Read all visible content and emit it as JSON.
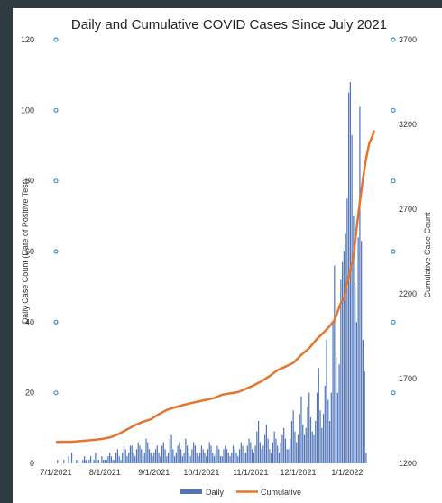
{
  "chart_data": {
    "type": "bar+line",
    "title": "Daily and Cumulative COVID Cases Since July 2021",
    "ylabel_left": "Daily Case Count (Date of Positive Test)",
    "ylabel_right": "Cumulative Case Count",
    "y_left_range": [
      0,
      120
    ],
    "y_right_range": [
      1200,
      3700
    ],
    "y_left_ticks": [
      "0",
      "20",
      "40",
      "60",
      "80",
      "100",
      "120"
    ],
    "y_right_ticks": [
      "1200",
      "1700",
      "2200",
      "2700",
      "3200",
      "3700"
    ],
    "x_ticks": [
      "7/1/2021",
      "8/1/2021",
      "9/1/2021",
      "10/1/2021",
      "11/1/2021",
      "12/1/2021",
      "1/1/2022"
    ],
    "x_range_days": [
      0,
      212
    ],
    "x_tick_days": [
      0,
      31,
      62,
      92,
      123,
      153,
      184
    ],
    "legend": [
      "Daily",
      "Cumulative"
    ],
    "colors": {
      "daily": "#4f74b8",
      "cumulative": "#e3762f",
      "marker": "#3a8fd6"
    },
    "daily": [
      0,
      1,
      0,
      0,
      0,
      1,
      0,
      0,
      2,
      0,
      3,
      0,
      0,
      1,
      1,
      0,
      0,
      1,
      2,
      1,
      0,
      1,
      2,
      0,
      1,
      3,
      1,
      1,
      0,
      2,
      1,
      1,
      1,
      2,
      3,
      2,
      1,
      1,
      3,
      4,
      2,
      1,
      3,
      5,
      4,
      2,
      3,
      5,
      5,
      3,
      2,
      4,
      6,
      5,
      4,
      2,
      3,
      7,
      6,
      4,
      3,
      2,
      3,
      4,
      5,
      3,
      2,
      5,
      6,
      4,
      2,
      3,
      7,
      8,
      4,
      2,
      3,
      5,
      6,
      4,
      2,
      3,
      7,
      5,
      3,
      2,
      4,
      6,
      5,
      3,
      2,
      3,
      5,
      4,
      3,
      2,
      4,
      6,
      5,
      3,
      2,
      3,
      5,
      4,
      2,
      2,
      4,
      5,
      4,
      3,
      2,
      3,
      5,
      4,
      3,
      2,
      4,
      6,
      5,
      3,
      3,
      5,
      7,
      6,
      4,
      3,
      5,
      9,
      12,
      6,
      4,
      5,
      8,
      11,
      7,
      4,
      3,
      6,
      9,
      7,
      5,
      3,
      6,
      8,
      10,
      7,
      4,
      4,
      7,
      12,
      15,
      9,
      6,
      8,
      14,
      19,
      11,
      8,
      10,
      16,
      20,
      13,
      9,
      8,
      12,
      20,
      27,
      15,
      10,
      14,
      22,
      35,
      18,
      12,
      20,
      40,
      56,
      30,
      20,
      28,
      52,
      57,
      60,
      65,
      75,
      105,
      108,
      93,
      70,
      50,
      40,
      64,
      101,
      63,
      35,
      26,
      3
    ],
    "cumulative": [
      [
        0,
        1326
      ],
      [
        5,
        1327
      ],
      [
        10,
        1327
      ],
      [
        15,
        1331
      ],
      [
        20,
        1335
      ],
      [
        25,
        1340
      ],
      [
        30,
        1345
      ],
      [
        35,
        1355
      ],
      [
        40,
        1375
      ],
      [
        45,
        1400
      ],
      [
        50,
        1425
      ],
      [
        55,
        1445
      ],
      [
        60,
        1460
      ],
      [
        65,
        1490
      ],
      [
        70,
        1515
      ],
      [
        75,
        1530
      ],
      [
        80,
        1543
      ],
      [
        85,
        1555
      ],
      [
        90,
        1565
      ],
      [
        95,
        1575
      ],
      [
        100,
        1585
      ],
      [
        105,
        1605
      ],
      [
        110,
        1613
      ],
      [
        115,
        1620
      ],
      [
        120,
        1640
      ],
      [
        125,
        1660
      ],
      [
        130,
        1685
      ],
      [
        135,
        1715
      ],
      [
        140,
        1750
      ],
      [
        145,
        1770
      ],
      [
        150,
        1793
      ],
      [
        155,
        1840
      ],
      [
        160,
        1880
      ],
      [
        165,
        1935
      ],
      [
        170,
        1980
      ],
      [
        173,
        2010
      ],
      [
        176,
        2045
      ],
      [
        178,
        2095
      ],
      [
        180,
        2145
      ],
      [
        182,
        2170
      ],
      [
        184,
        2265
      ],
      [
        186,
        2340
      ],
      [
        188,
        2420
      ],
      [
        190,
        2590
      ],
      [
        192,
        2740
      ],
      [
        194,
        2880
      ],
      [
        196,
        3000
      ],
      [
        198,
        3090
      ],
      [
        200,
        3130
      ],
      [
        201,
        3165
      ]
    ]
  }
}
